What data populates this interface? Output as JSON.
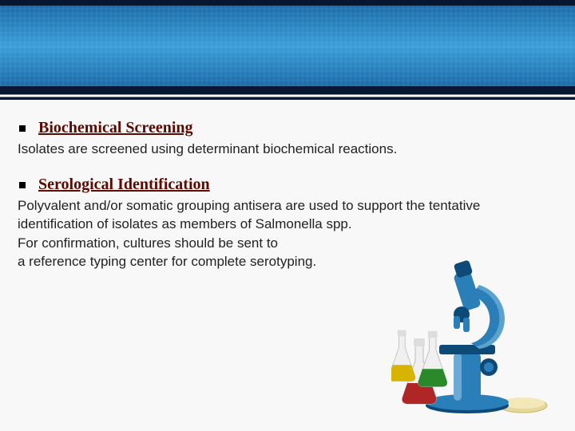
{
  "colors": {
    "banner_top_edge": "#071733",
    "banner_gradient_top": "#1a6ca8",
    "banner_gradient_mid": "#3a9ed8",
    "page_bg": "#f8f8f8",
    "heading_color": "#5a0a00",
    "text_color": "#222222"
  },
  "typography": {
    "heading_font": "Times New Roman",
    "heading_size_pt": 15,
    "heading_weight": "bold",
    "body_font": "Trebuchet MS",
    "body_size_pt": 13
  },
  "sections": [
    {
      "heading": "Biochemical Screening",
      "body": "Isolates are screened using determinant biochemical reactions."
    },
    {
      "heading": "Serological Identification",
      "body": "Polyvalent and/or somatic grouping antisera are used to support the tentative identification of isolates as members of Salmonella spp.\n For confirmation, cultures should be sent to\n a reference typing center for complete serotyping."
    }
  ],
  "illustration": {
    "type": "infographic",
    "description": "microscope-with-flasks-and-petri-dish",
    "microscope_body_color": "#2a7fb8",
    "microscope_accent_color": "#0d4a78",
    "microscope_light_color": "#a9d6ef",
    "flask_colors": [
      "#b02525",
      "#2a8a2a",
      "#d6b400"
    ],
    "petri_dish_color": "#e8d79a",
    "petri_agar_color": "#f2e8b8"
  }
}
